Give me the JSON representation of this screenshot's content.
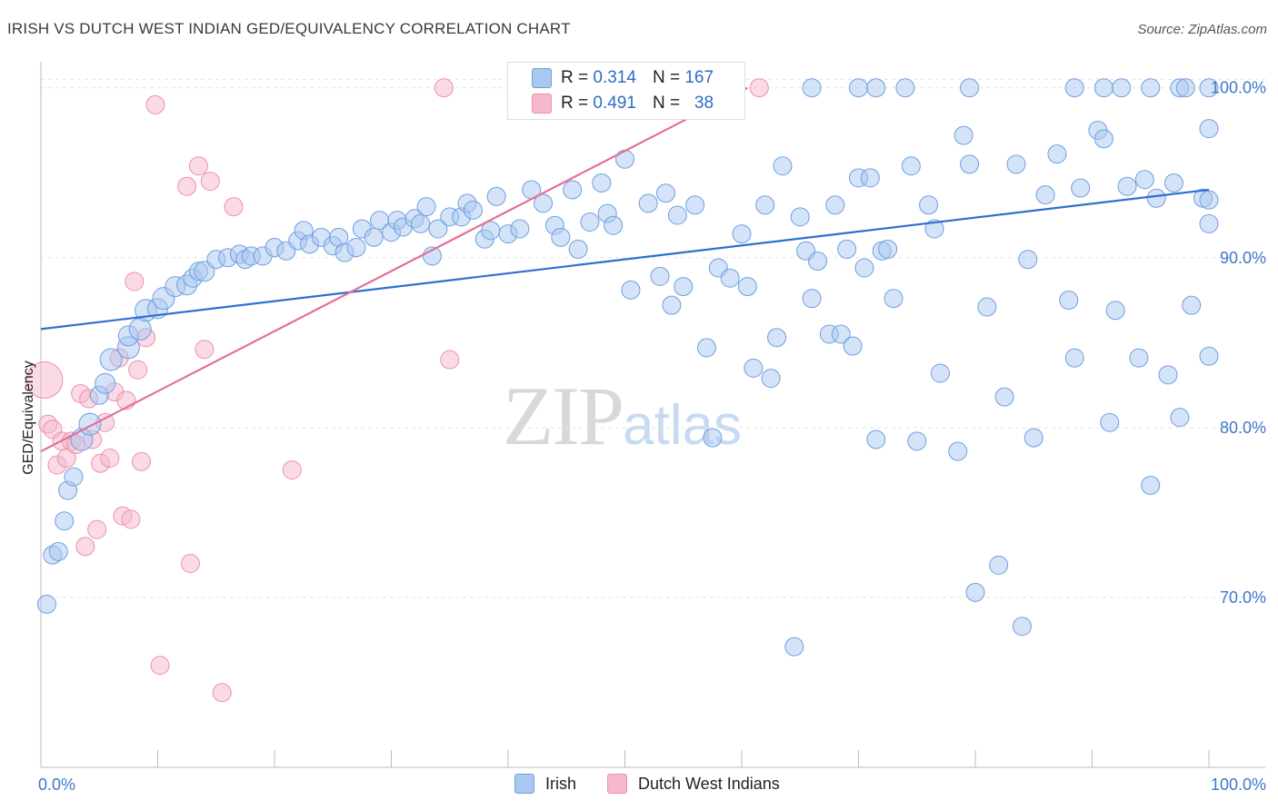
{
  "header": {
    "title": "IRISH VS DUTCH WEST INDIAN GED/EQUIVALENCY CORRELATION CHART",
    "source": "Source: ZipAtlas.com"
  },
  "watermark": {
    "zip": "ZIP",
    "atlas": "atlas"
  },
  "legend": {
    "rows": [
      {
        "r_label": "R =",
        "r_value": "0.314",
        "n_label": "N =",
        "n_value": "167",
        "color": "#a9c8f0"
      },
      {
        "r_label": "R =",
        "r_value": "0.491",
        "n_label": "N =",
        "n_value": "38",
        "color": "#f6b8cb"
      }
    ]
  },
  "bottom_legend": [
    {
      "label": "Irish",
      "color": "#a9c8f0"
    },
    {
      "label": "Dutch West Indians",
      "color": "#f6b8cb"
    }
  ],
  "colors": {
    "irish_fill": "#a9c8f0",
    "irish_stroke": "#6f9fe0",
    "irish_line": "#2e6fd0",
    "dwi_fill": "#f6b8cb",
    "dwi_stroke": "#ee8fab",
    "dwi_line": "#e56f98",
    "tick_text": "#3e78c8",
    "grid": "#e2e2e2"
  },
  "chart_data": {
    "type": "scatter",
    "title": "IRISH VS DUTCH WEST INDIAN GED/EQUIVALENCY CORRELATION CHART",
    "xlabel": "",
    "ylabel": "GED/Equivalency",
    "xlim": [
      0,
      100
    ],
    "ylim": [
      60,
      101
    ],
    "x_tick_labels": [
      "0.0%",
      "100.0%"
    ],
    "y_ticks": [
      70,
      80,
      90,
      100
    ],
    "y_tick_labels": [
      "70.0%",
      "80.0%",
      "90.0%",
      "100.0%"
    ],
    "grid": true,
    "legend_position": "top-center",
    "series": [
      {
        "name": "Irish",
        "trendline": [
          [
            0,
            85.8
          ],
          [
            100,
            94.0
          ]
        ],
        "points": [
          [
            0.5,
            69.6,
            10
          ],
          [
            1,
            72.5,
            10
          ],
          [
            1.5,
            72.7,
            10
          ],
          [
            2,
            74.5,
            10
          ],
          [
            2.3,
            76.3,
            10
          ],
          [
            2.8,
            77.1,
            10
          ],
          [
            3.5,
            79.3,
            12
          ],
          [
            4.2,
            80.2,
            12
          ],
          [
            5,
            81.9,
            10
          ],
          [
            5.5,
            82.6,
            11
          ],
          [
            6,
            84,
            12
          ],
          [
            7.5,
            84.7,
            12
          ],
          [
            7.5,
            85.4,
            11
          ],
          [
            8.5,
            85.8,
            12
          ],
          [
            9,
            86.9,
            12
          ],
          [
            10,
            87,
            11
          ],
          [
            10.5,
            87.6,
            12
          ],
          [
            11.5,
            88.3,
            11
          ],
          [
            12.5,
            88.4,
            11
          ],
          [
            13,
            88.8,
            10
          ],
          [
            13.5,
            89.2,
            10
          ],
          [
            14,
            89.2,
            11
          ],
          [
            15,
            89.9,
            10
          ],
          [
            16,
            90,
            10
          ],
          [
            17,
            90.2,
            10
          ],
          [
            17.5,
            89.9,
            10
          ],
          [
            18,
            90.1,
            10
          ],
          [
            19,
            90.1,
            10
          ],
          [
            20,
            90.6,
            10
          ],
          [
            21,
            90.4,
            10
          ],
          [
            22,
            91,
            10
          ],
          [
            22.5,
            91.6,
            10
          ],
          [
            23,
            90.8,
            10
          ],
          [
            24,
            91.2,
            10
          ],
          [
            25,
            90.7,
            10
          ],
          [
            25.5,
            91.2,
            10
          ],
          [
            26,
            90.3,
            10
          ],
          [
            27,
            90.6,
            10
          ],
          [
            27.5,
            91.7,
            10
          ],
          [
            28.5,
            91.2,
            10
          ],
          [
            29,
            92.2,
            10
          ],
          [
            30,
            91.5,
            10
          ],
          [
            30.5,
            92.2,
            10
          ],
          [
            31,
            91.8,
            10
          ],
          [
            32,
            92.3,
            10
          ],
          [
            32.5,
            92,
            10
          ],
          [
            33,
            93,
            10
          ],
          [
            33.5,
            90.1,
            10
          ],
          [
            34,
            91.7,
            10
          ],
          [
            35,
            92.4,
            10
          ],
          [
            36,
            92.4,
            10
          ],
          [
            36.5,
            93.2,
            10
          ],
          [
            37,
            92.8,
            10
          ],
          [
            38,
            91.1,
            10
          ],
          [
            38.5,
            91.6,
            10
          ],
          [
            39,
            93.6,
            10
          ],
          [
            40,
            91.4,
            10
          ],
          [
            41,
            91.7,
            10
          ],
          [
            42,
            94,
            10
          ],
          [
            43,
            93.2,
            10
          ],
          [
            44,
            91.9,
            10
          ],
          [
            44.5,
            91.2,
            10
          ],
          [
            45.5,
            94,
            10
          ],
          [
            46,
            90.5,
            10
          ],
          [
            47,
            92.1,
            10
          ],
          [
            48,
            94.4,
            10
          ],
          [
            48.5,
            92.6,
            10
          ],
          [
            49,
            91.9,
            10
          ],
          [
            50,
            95.8,
            10
          ],
          [
            50.5,
            88.1,
            10
          ],
          [
            52,
            93.2,
            10
          ],
          [
            53,
            88.9,
            10
          ],
          [
            53.5,
            93.8,
            10
          ],
          [
            54,
            87.2,
            10
          ],
          [
            54.5,
            92.5,
            10
          ],
          [
            55,
            88.3,
            10
          ],
          [
            56,
            93.1,
            10
          ],
          [
            57,
            84.7,
            10
          ],
          [
            57.5,
            79.4,
            10
          ],
          [
            58,
            89.4,
            10
          ],
          [
            59,
            88.8,
            10
          ],
          [
            60,
            91.4,
            10
          ],
          [
            60.5,
            88.3,
            10
          ],
          [
            61,
            83.5,
            10
          ],
          [
            62,
            93.1,
            10
          ],
          [
            62.5,
            82.9,
            10
          ],
          [
            63,
            85.3,
            10
          ],
          [
            63.5,
            95.4,
            10
          ],
          [
            64.5,
            67.1,
            10
          ],
          [
            65,
            92.4,
            10
          ],
          [
            65.5,
            90.4,
            10
          ],
          [
            66,
            87.6,
            10
          ],
          [
            66.5,
            89.8,
            10
          ],
          [
            67.5,
            85.5,
            10
          ],
          [
            68,
            93.1,
            10
          ],
          [
            68.5,
            85.5,
            10
          ],
          [
            69,
            90.5,
            10
          ],
          [
            69.5,
            84.8,
            10
          ],
          [
            70,
            94.7,
            10
          ],
          [
            70.5,
            89.4,
            10
          ],
          [
            71,
            94.7,
            10
          ],
          [
            71.5,
            79.3,
            10
          ],
          [
            72,
            90.4,
            10
          ],
          [
            72.5,
            90.5,
            10
          ],
          [
            73,
            87.6,
            10
          ],
          [
            74.5,
            95.4,
            10
          ],
          [
            75,
            79.2,
            10
          ],
          [
            76,
            93.1,
            10
          ],
          [
            76.5,
            91.7,
            10
          ],
          [
            77,
            83.2,
            10
          ],
          [
            78.5,
            78.6,
            10
          ],
          [
            79,
            97.2,
            10
          ],
          [
            79.5,
            95.5,
            10
          ],
          [
            80,
            70.3,
            10
          ],
          [
            81,
            87.1,
            10
          ],
          [
            82,
            71.9,
            10
          ],
          [
            82.5,
            81.8,
            10
          ],
          [
            83.5,
            95.5,
            10
          ],
          [
            84,
            68.3,
            10
          ],
          [
            84.5,
            89.9,
            10
          ],
          [
            85,
            79.4,
            10
          ],
          [
            86,
            93.7,
            10
          ],
          [
            87,
            96.1,
            10
          ],
          [
            88,
            87.5,
            10
          ],
          [
            88.5,
            84.1,
            10
          ],
          [
            89,
            94.1,
            10
          ],
          [
            90.5,
            97.5,
            10
          ],
          [
            91,
            97,
            10
          ],
          [
            91.5,
            80.3,
            10
          ],
          [
            92,
            86.9,
            10
          ],
          [
            93,
            94.2,
            10
          ],
          [
            94,
            84.1,
            10
          ],
          [
            94.5,
            94.6,
            10
          ],
          [
            95,
            76.6,
            10
          ],
          [
            95.5,
            93.5,
            10
          ],
          [
            96.5,
            83.1,
            10
          ],
          [
            97,
            94.4,
            10
          ],
          [
            97.5,
            80.6,
            10
          ],
          [
            98.5,
            87.2,
            10
          ],
          [
            99.5,
            93.5,
            10
          ],
          [
            100,
            92.0,
            10
          ],
          [
            100,
            84.2,
            10
          ],
          [
            100,
            97.6,
            10
          ],
          [
            100,
            93.4,
            10
          ],
          [
            66,
            100,
            10
          ],
          [
            70,
            100,
            10
          ],
          [
            71.5,
            100,
            10
          ],
          [
            74,
            100,
            10
          ],
          [
            79.5,
            100,
            10
          ],
          [
            88.5,
            100,
            10
          ],
          [
            91,
            100,
            10
          ],
          [
            92.5,
            100,
            10
          ],
          [
            95,
            100,
            10
          ],
          [
            97.5,
            100,
            10
          ],
          [
            98,
            100,
            10
          ],
          [
            100,
            100,
            10
          ]
        ]
      },
      {
        "name": "Dutch West Indians",
        "trendline": [
          [
            0,
            78.6
          ],
          [
            60.5,
            100.0
          ]
        ],
        "points": [
          [
            0.3,
            82.8,
            20
          ],
          [
            0.6,
            80.2,
            10
          ],
          [
            1,
            79.9,
            10
          ],
          [
            1.4,
            77.8,
            10
          ],
          [
            1.8,
            79.2,
            10
          ],
          [
            2.2,
            78.2,
            10
          ],
          [
            2.6,
            79.2,
            10
          ],
          [
            3,
            79,
            10
          ],
          [
            3.4,
            82,
            10
          ],
          [
            3.8,
            73,
            10
          ],
          [
            4.1,
            81.7,
            10
          ],
          [
            4.4,
            79.3,
            10
          ],
          [
            4.8,
            74,
            10
          ],
          [
            5.1,
            77.9,
            10
          ],
          [
            5.5,
            80.3,
            10
          ],
          [
            5.9,
            78.2,
            10
          ],
          [
            6.3,
            82.1,
            10
          ],
          [
            6.7,
            84.1,
            10
          ],
          [
            7,
            74.8,
            10
          ],
          [
            7.3,
            81.6,
            10
          ],
          [
            7.7,
            74.6,
            10
          ],
          [
            8,
            88.6,
            10
          ],
          [
            8.3,
            83.4,
            10
          ],
          [
            8.6,
            78,
            10
          ],
          [
            9,
            85.3,
            10
          ],
          [
            9.8,
            99,
            10
          ],
          [
            10.2,
            66,
            10
          ],
          [
            12.5,
            94.2,
            10
          ],
          [
            12.8,
            72,
            10
          ],
          [
            13.5,
            95.4,
            10
          ],
          [
            14,
            84.6,
            10
          ],
          [
            14.5,
            94.5,
            10
          ],
          [
            15.5,
            64.4,
            10
          ],
          [
            16.5,
            93,
            10
          ],
          [
            21.5,
            77.5,
            10
          ],
          [
            34.5,
            100,
            10
          ],
          [
            35,
            84,
            10
          ],
          [
            61.5,
            100,
            10
          ]
        ]
      }
    ]
  }
}
